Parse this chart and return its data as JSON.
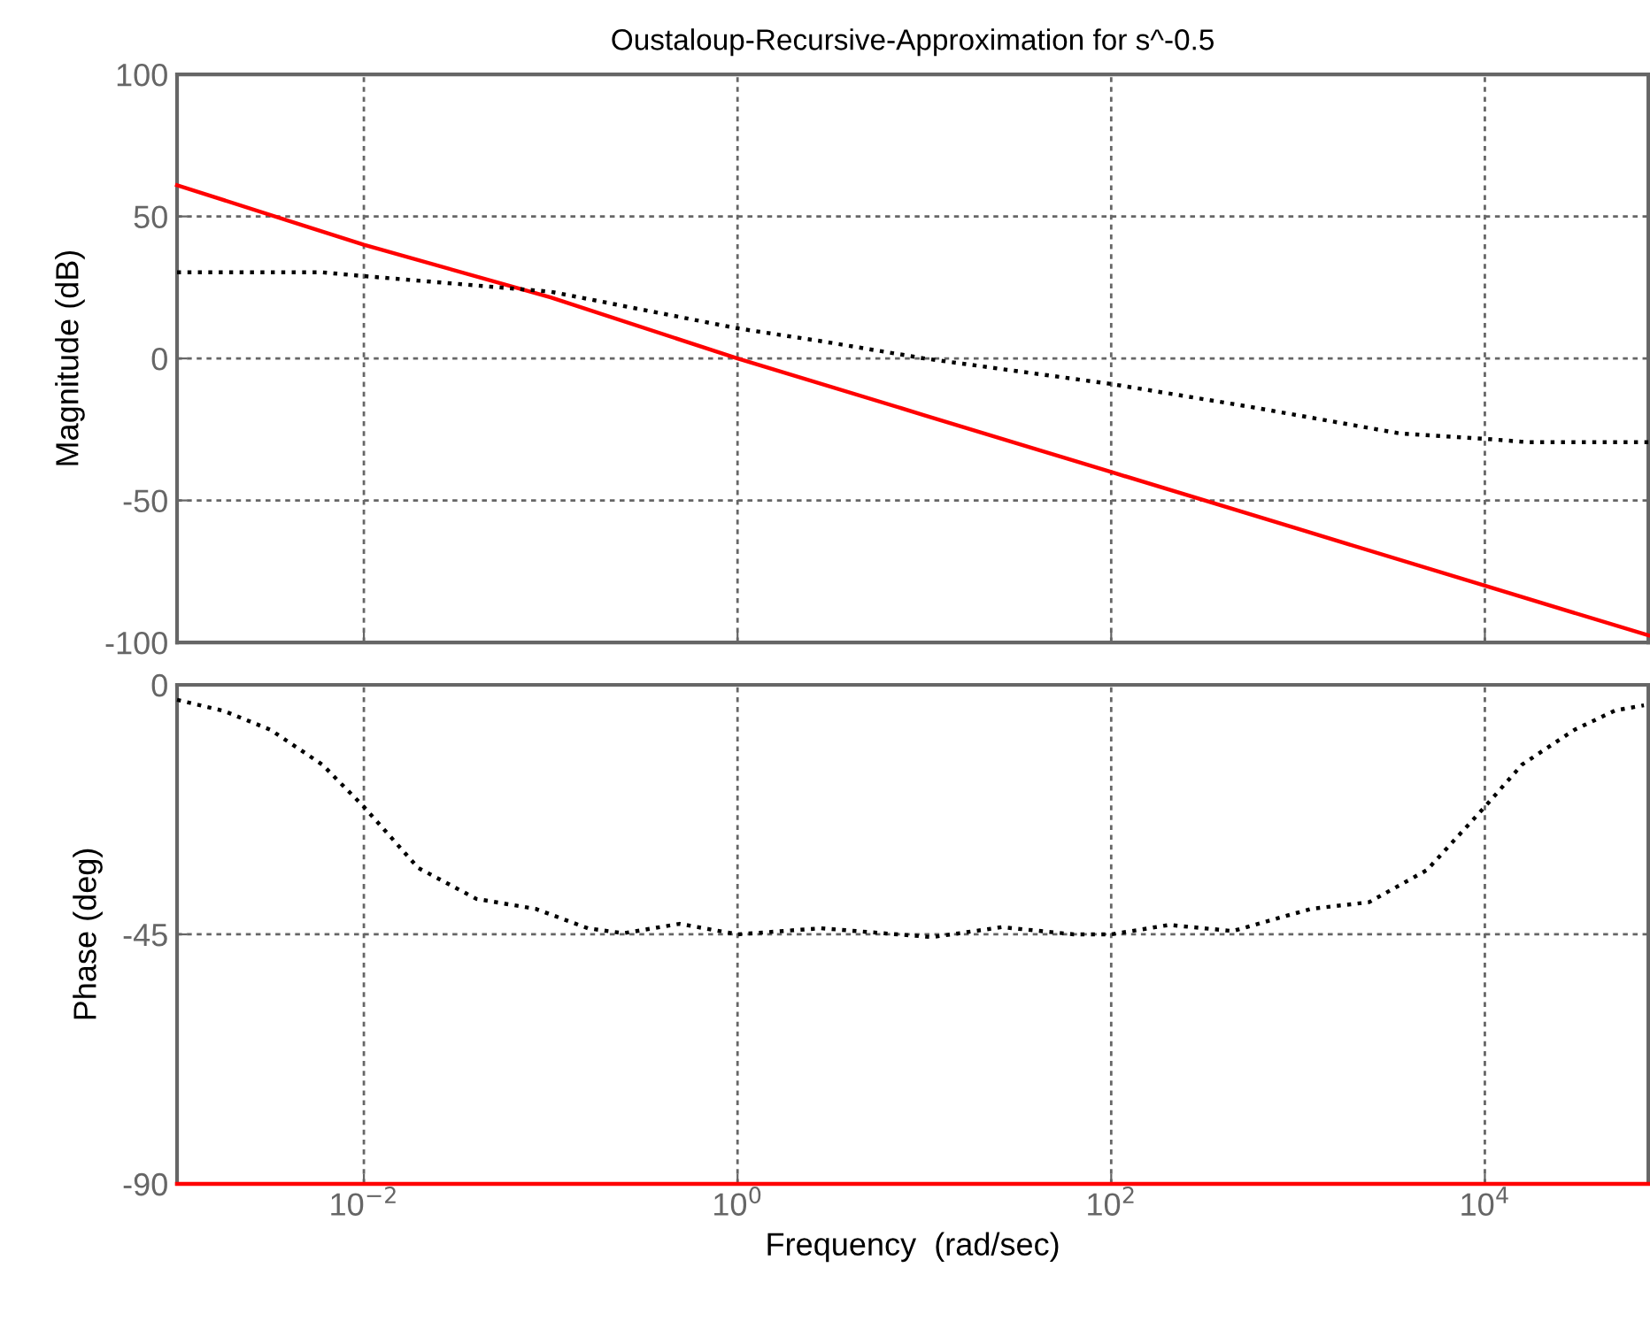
{
  "chart_data": [
    {
      "type": "line",
      "title": "Oustaloup-Recursive-Approximation for s^-0.5",
      "ylabel": "Magnitude (dB)",
      "xlim": [
        0.001,
        75000
      ],
      "ylim": [
        -100,
        100
      ],
      "yticks": [
        -100,
        -50,
        0,
        50,
        100
      ],
      "log": "x",
      "grid": true,
      "tick_labels": "y",
      "xticks": [
        {
          "value": 0.01,
          "label": null
        },
        {
          "value": 1,
          "label": null
        },
        {
          "value": 100,
          "label": null
        },
        {
          "value": 10000,
          "label": null
        }
      ],
      "series": [
        {
          "color": "#ff0000",
          "line_style": "solid",
          "x": [
            0.001,
            0.01,
            0.1,
            1,
            10,
            100,
            1000,
            10000,
            75000
          ],
          "values": [
            61,
            40,
            21.5,
            0,
            -20,
            -40,
            -60,
            -80,
            -97.5
          ]
        },
        {
          "color": "#000000",
          "line_style": "dotted",
          "x": [
            0.001,
            0.006,
            0.01,
            0.1,
            1,
            2.85,
            10,
            100,
            550,
            3500,
            10000,
            17000,
            75000
          ],
          "values": [
            30.3,
            30.3,
            29,
            23.5,
            10.6,
            6,
            0,
            -9,
            -17,
            -26.4,
            -28.3,
            -29.5,
            -29.5
          ]
        }
      ]
    },
    {
      "type": "line",
      "xlabel": "Frequency  (rad/sec)",
      "ylabel": "Phase (deg)",
      "xlim": [
        0.001,
        75000
      ],
      "ylim": [
        -90,
        0
      ],
      "yticks": [
        -90,
        -45,
        0
      ],
      "log": "x",
      "grid": true,
      "xticks": [
        {
          "value": 0.01,
          "label": "10$^{−2}$"
        },
        {
          "value": 1,
          "label": "10$^{0}$"
        },
        {
          "value": 100,
          "label": "10$^{2}$"
        },
        {
          "value": 10000,
          "label": "10$^{4}$"
        }
      ],
      "series": [
        {
          "color": "#ff0000",
          "line_style": "solid",
          "x": [
            0.001,
            75000
          ],
          "values": [
            -90,
            -90
          ]
        },
        {
          "color": "#000000",
          "line_style": "dotted",
          "x": [
            0.001,
            0.00178,
            0.00316,
            0.006,
            0.01,
            0.0195,
            0.04,
            0.083,
            0.158,
            0.245,
            0.49,
            1,
            2.8,
            11,
            26,
            63,
            100,
            204,
            447,
            1175,
            2400,
            4900,
            10000,
            15800,
            30200,
            50000,
            71000
          ],
          "values": [
            -2.7,
            -4.7,
            -8.1,
            -14.4,
            -22,
            -33,
            -38.6,
            -40.4,
            -43.9,
            -44.8,
            -43.1,
            -45,
            -43.9,
            -45.5,
            -43.7,
            -45,
            -45,
            -43.3,
            -44.4,
            -40.4,
            -39.2,
            -33.4,
            -22,
            -14.4,
            -8.1,
            -4.6,
            -3.7
          ]
        }
      ]
    }
  ]
}
